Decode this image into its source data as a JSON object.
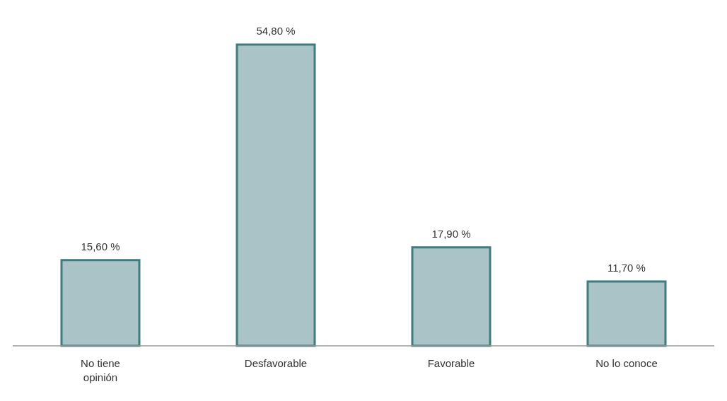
{
  "chart_data": {
    "type": "bar",
    "categories": [
      "No tiene opinión",
      "Desfavorable",
      "Favorable",
      "No lo conoce"
    ],
    "values": [
      15.6,
      54.8,
      17.9,
      11.7
    ],
    "value_labels": [
      "15,60 %",
      "54,80 %",
      "17,90 %",
      "11,70 %"
    ],
    "color": "#a9c3c7",
    "grid": false,
    "legend": false
  }
}
